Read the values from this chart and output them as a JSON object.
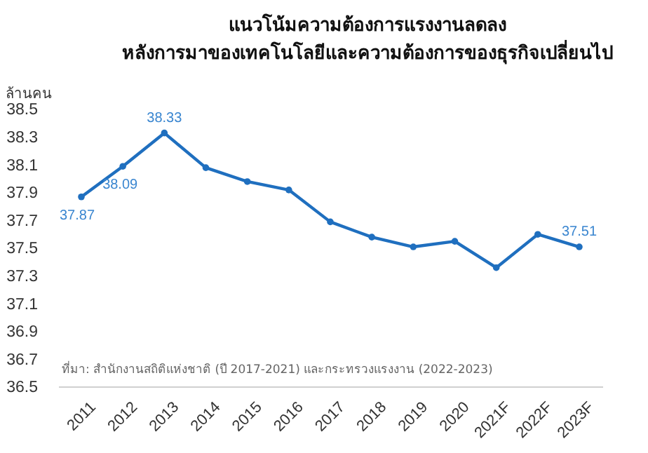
{
  "chart_data": {
    "type": "line",
    "title": "แนวโน้มความต้องการแรงงานลดลง\nหลังการมาของเทคโนโลยีและความต้องการของธุรกิจเปลี่ยนไป",
    "ylabel": "ล้านคน",
    "categories": [
      "2011",
      "2012",
      "2013",
      "2014",
      "2015",
      "2016",
      "2017",
      "2018",
      "2019",
      "2020",
      "2021F",
      "2022F",
      "2023F"
    ],
    "series": [
      {
        "color": "#1f6fbf",
        "values": [
          37.87,
          38.09,
          38.33,
          38.08,
          37.98,
          37.92,
          37.69,
          37.58,
          37.51,
          37.55,
          37.36,
          37.6,
          37.51
        ],
        "value_labels": [
          "37.87",
          "38.09",
          "38.33",
          null,
          null,
          null,
          null,
          null,
          null,
          null,
          null,
          null,
          "37.51"
        ]
      }
    ],
    "ylim": [
      36.5,
      38.5
    ],
    "yticks": [
      36.5,
      36.7,
      36.9,
      37.1,
      37.3,
      37.5,
      37.7,
      37.9,
      38.1,
      38.3,
      38.5
    ],
    "grid": false,
    "marker": "circle",
    "line_style": "solid",
    "annotations": [
      "ที่มา: สำนักงานสถิติแห่งชาติ (ปี 2017-2021) และกระทรวงแรงงาน (2022-2023)"
    ]
  }
}
